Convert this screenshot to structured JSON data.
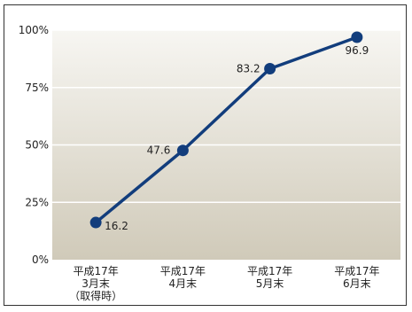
{
  "chart_data": {
    "type": "line",
    "categories": [
      [
        "平成17年",
        "3月末",
        "（取得時）"
      ],
      [
        "平成17年",
        "4月末"
      ],
      [
        "平成17年",
        "5月末"
      ],
      [
        "平成17年",
        "6月末"
      ]
    ],
    "series": [
      {
        "values": [
          16.2,
          47.6,
          83.2,
          96.9
        ]
      }
    ],
    "data_labels": [
      "16.2",
      "47.6",
      "83.2",
      "96.9"
    ],
    "y_ticks": [
      "0%",
      "25%",
      "50%",
      "75%",
      "100%"
    ],
    "ylim": [
      0,
      100
    ],
    "grid": true,
    "colors": {
      "line": "#123d7c",
      "plot_top": "#f7f6f2",
      "plot_bottom": "#d0cab9",
      "grid": "#ffffff"
    }
  }
}
